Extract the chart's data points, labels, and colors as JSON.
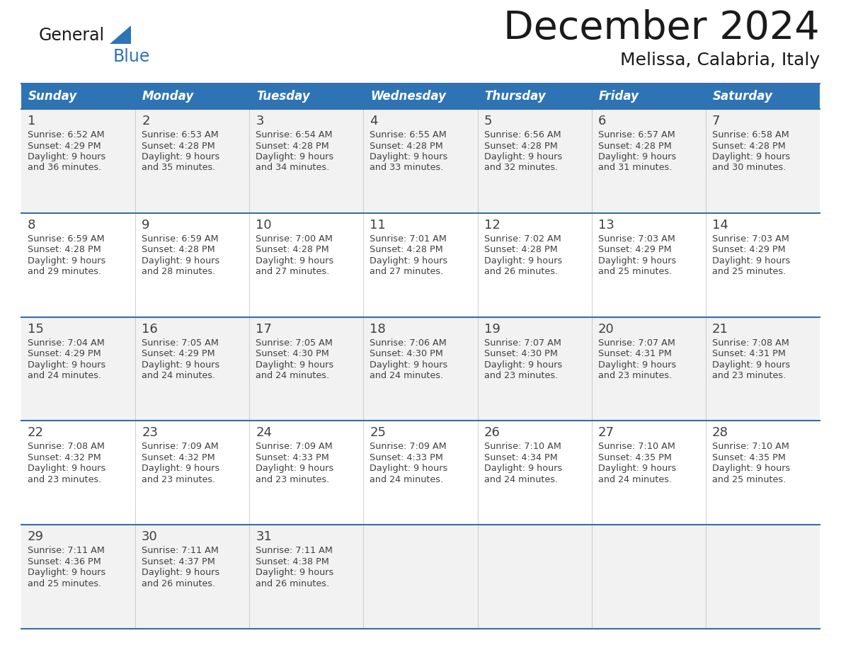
{
  "title": "December 2024",
  "subtitle": "Melissa, Calabria, Italy",
  "header_bg": "#2E74B5",
  "header_text_color": "#FFFFFF",
  "days_of_week": [
    "Sunday",
    "Monday",
    "Tuesday",
    "Wednesday",
    "Thursday",
    "Friday",
    "Saturday"
  ],
  "row_bg_odd": "#F2F2F2",
  "row_bg_even": "#FFFFFF",
  "divider_color": "#3A6EA5",
  "cell_text_color": "#404040",
  "calendar_data": [
    [
      {
        "day": 1,
        "sunrise": "6:52 AM",
        "sunset": "4:29 PM",
        "daylight_line1": "9 hours",
        "daylight_line2": "and 36 minutes."
      },
      {
        "day": 2,
        "sunrise": "6:53 AM",
        "sunset": "4:28 PM",
        "daylight_line1": "9 hours",
        "daylight_line2": "and 35 minutes."
      },
      {
        "day": 3,
        "sunrise": "6:54 AM",
        "sunset": "4:28 PM",
        "daylight_line1": "9 hours",
        "daylight_line2": "and 34 minutes."
      },
      {
        "day": 4,
        "sunrise": "6:55 AM",
        "sunset": "4:28 PM",
        "daylight_line1": "9 hours",
        "daylight_line2": "and 33 minutes."
      },
      {
        "day": 5,
        "sunrise": "6:56 AM",
        "sunset": "4:28 PM",
        "daylight_line1": "9 hours",
        "daylight_line2": "and 32 minutes."
      },
      {
        "day": 6,
        "sunrise": "6:57 AM",
        "sunset": "4:28 PM",
        "daylight_line1": "9 hours",
        "daylight_line2": "and 31 minutes."
      },
      {
        "day": 7,
        "sunrise": "6:58 AM",
        "sunset": "4:28 PM",
        "daylight_line1": "9 hours",
        "daylight_line2": "and 30 minutes."
      }
    ],
    [
      {
        "day": 8,
        "sunrise": "6:59 AM",
        "sunset": "4:28 PM",
        "daylight_line1": "9 hours",
        "daylight_line2": "and 29 minutes."
      },
      {
        "day": 9,
        "sunrise": "6:59 AM",
        "sunset": "4:28 PM",
        "daylight_line1": "9 hours",
        "daylight_line2": "and 28 minutes."
      },
      {
        "day": 10,
        "sunrise": "7:00 AM",
        "sunset": "4:28 PM",
        "daylight_line1": "9 hours",
        "daylight_line2": "and 27 minutes."
      },
      {
        "day": 11,
        "sunrise": "7:01 AM",
        "sunset": "4:28 PM",
        "daylight_line1": "9 hours",
        "daylight_line2": "and 27 minutes."
      },
      {
        "day": 12,
        "sunrise": "7:02 AM",
        "sunset": "4:28 PM",
        "daylight_line1": "9 hours",
        "daylight_line2": "and 26 minutes."
      },
      {
        "day": 13,
        "sunrise": "7:03 AM",
        "sunset": "4:29 PM",
        "daylight_line1": "9 hours",
        "daylight_line2": "and 25 minutes."
      },
      {
        "day": 14,
        "sunrise": "7:03 AM",
        "sunset": "4:29 PM",
        "daylight_line1": "9 hours",
        "daylight_line2": "and 25 minutes."
      }
    ],
    [
      {
        "day": 15,
        "sunrise": "7:04 AM",
        "sunset": "4:29 PM",
        "daylight_line1": "9 hours",
        "daylight_line2": "and 24 minutes."
      },
      {
        "day": 16,
        "sunrise": "7:05 AM",
        "sunset": "4:29 PM",
        "daylight_line1": "9 hours",
        "daylight_line2": "and 24 minutes."
      },
      {
        "day": 17,
        "sunrise": "7:05 AM",
        "sunset": "4:30 PM",
        "daylight_line1": "9 hours",
        "daylight_line2": "and 24 minutes."
      },
      {
        "day": 18,
        "sunrise": "7:06 AM",
        "sunset": "4:30 PM",
        "daylight_line1": "9 hours",
        "daylight_line2": "and 24 minutes."
      },
      {
        "day": 19,
        "sunrise": "7:07 AM",
        "sunset": "4:30 PM",
        "daylight_line1": "9 hours",
        "daylight_line2": "and 23 minutes."
      },
      {
        "day": 20,
        "sunrise": "7:07 AM",
        "sunset": "4:31 PM",
        "daylight_line1": "9 hours",
        "daylight_line2": "and 23 minutes."
      },
      {
        "day": 21,
        "sunrise": "7:08 AM",
        "sunset": "4:31 PM",
        "daylight_line1": "9 hours",
        "daylight_line2": "and 23 minutes."
      }
    ],
    [
      {
        "day": 22,
        "sunrise": "7:08 AM",
        "sunset": "4:32 PM",
        "daylight_line1": "9 hours",
        "daylight_line2": "and 23 minutes."
      },
      {
        "day": 23,
        "sunrise": "7:09 AM",
        "sunset": "4:32 PM",
        "daylight_line1": "9 hours",
        "daylight_line2": "and 23 minutes."
      },
      {
        "day": 24,
        "sunrise": "7:09 AM",
        "sunset": "4:33 PM",
        "daylight_line1": "9 hours",
        "daylight_line2": "and 23 minutes."
      },
      {
        "day": 25,
        "sunrise": "7:09 AM",
        "sunset": "4:33 PM",
        "daylight_line1": "9 hours",
        "daylight_line2": "and 24 minutes."
      },
      {
        "day": 26,
        "sunrise": "7:10 AM",
        "sunset": "4:34 PM",
        "daylight_line1": "9 hours",
        "daylight_line2": "and 24 minutes."
      },
      {
        "day": 27,
        "sunrise": "7:10 AM",
        "sunset": "4:35 PM",
        "daylight_line1": "9 hours",
        "daylight_line2": "and 24 minutes."
      },
      {
        "day": 28,
        "sunrise": "7:10 AM",
        "sunset": "4:35 PM",
        "daylight_line1": "9 hours",
        "daylight_line2": "and 25 minutes."
      }
    ],
    [
      {
        "day": 29,
        "sunrise": "7:11 AM",
        "sunset": "4:36 PM",
        "daylight_line1": "9 hours",
        "daylight_line2": "and 25 minutes."
      },
      {
        "day": 30,
        "sunrise": "7:11 AM",
        "sunset": "4:37 PM",
        "daylight_line1": "9 hours",
        "daylight_line2": "and 26 minutes."
      },
      {
        "day": 31,
        "sunrise": "7:11 AM",
        "sunset": "4:38 PM",
        "daylight_line1": "9 hours",
        "daylight_line2": "and 26 minutes."
      },
      null,
      null,
      null,
      null
    ]
  ],
  "logo_general_color": "#1A1A1A",
  "logo_blue_color": "#2E74B5",
  "fig_width": 11.88,
  "fig_height": 9.18
}
